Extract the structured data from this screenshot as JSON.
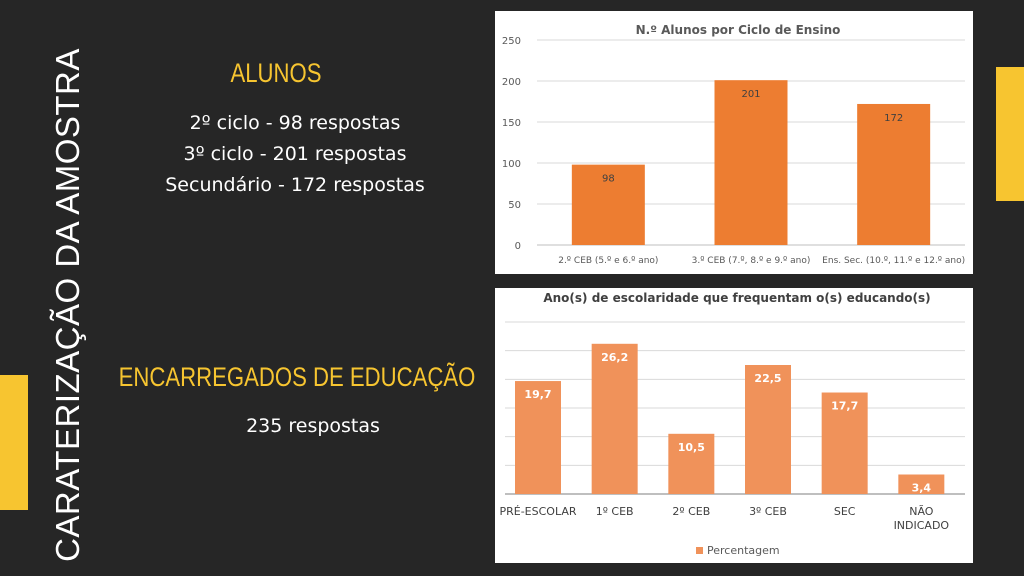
{
  "slide": {
    "vertical_title": "CARATERIZAÇÃO DA AMOSTRA",
    "alunos": {
      "heading": "ALUNOS",
      "lines": [
        "2º ciclo - 98 respostas",
        "3º ciclo - 201 respostas",
        "Secundário - 172 respostas"
      ]
    },
    "encarregados": {
      "heading": "ENCARREGADOS DE EDUCAÇÃO",
      "line": "235 respostas"
    },
    "colors": {
      "background": "#262626",
      "accent": "#f7c530",
      "bar1": "#ed7d31",
      "bar2": "#f0925a"
    }
  },
  "chart_data": [
    {
      "type": "bar",
      "title": "N.º Alunos por Ciclo de Ensino",
      "categories": [
        "2.º CEB (5.º e 6.º ano)",
        "3.º CEB (7.º, 8.º e 9.º ano)",
        "Ens. Sec. (10.º, 11.º e 12.º ano)"
      ],
      "values": [
        98,
        201,
        172
      ],
      "data_labels": [
        "98",
        "201",
        "172"
      ],
      "ylim": [
        0,
        250
      ],
      "yticks": [
        0,
        50,
        100,
        150,
        200,
        250
      ],
      "grid": true,
      "legend": "none"
    },
    {
      "type": "bar",
      "title": "Ano(s) de escolaridade que frequentam o(s) educando(s)",
      "categories": [
        "PRÉ-ESCOLAR",
        "1º CEB",
        "2º CEB",
        "3º CEB",
        "SEC",
        "NÃO INDICADO"
      ],
      "values": [
        19.7,
        26.2,
        10.5,
        22.5,
        17.7,
        3.4
      ],
      "data_labels": [
        "19,7",
        "26,2",
        "10,5",
        "22,5",
        "17,7",
        "3,4"
      ],
      "series": [
        {
          "name": "Percentagem",
          "values": [
            19.7,
            26.2,
            10.5,
            22.5,
            17.7,
            3.4
          ]
        }
      ],
      "ylim": [
        0,
        30
      ],
      "grid": true,
      "legend": "bottom"
    }
  ]
}
